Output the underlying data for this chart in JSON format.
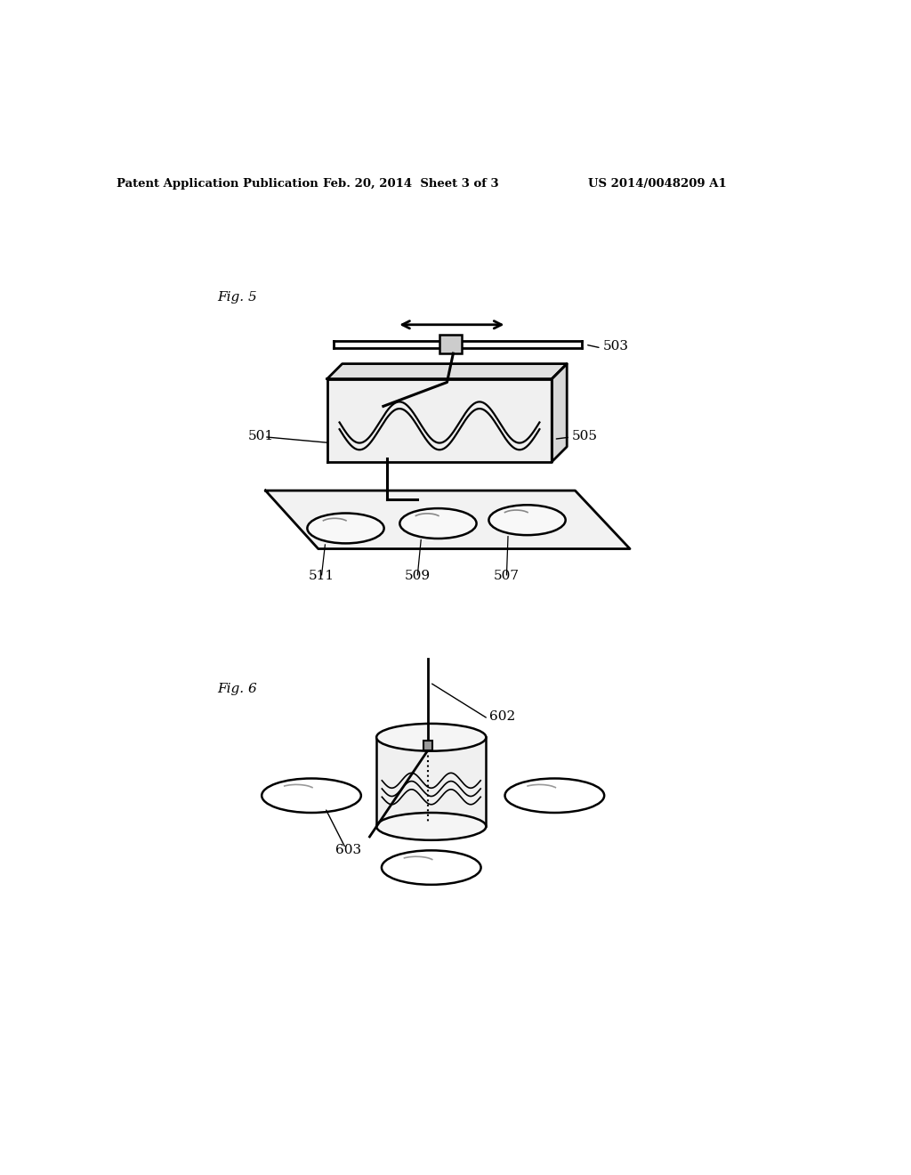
{
  "bg_color": "#ffffff",
  "title_left": "Patent Application Publication",
  "title_mid": "Feb. 20, 2014  Sheet 3 of 3",
  "title_right": "US 2014/0048209 A1",
  "fig5_label": "Fig. 5",
  "fig6_label": "Fig. 6",
  "label_503": "503",
  "label_505": "505",
  "label_501": "501",
  "label_511": "511",
  "label_509": "509",
  "label_507": "507",
  "label_602": "602",
  "label_603": "603"
}
